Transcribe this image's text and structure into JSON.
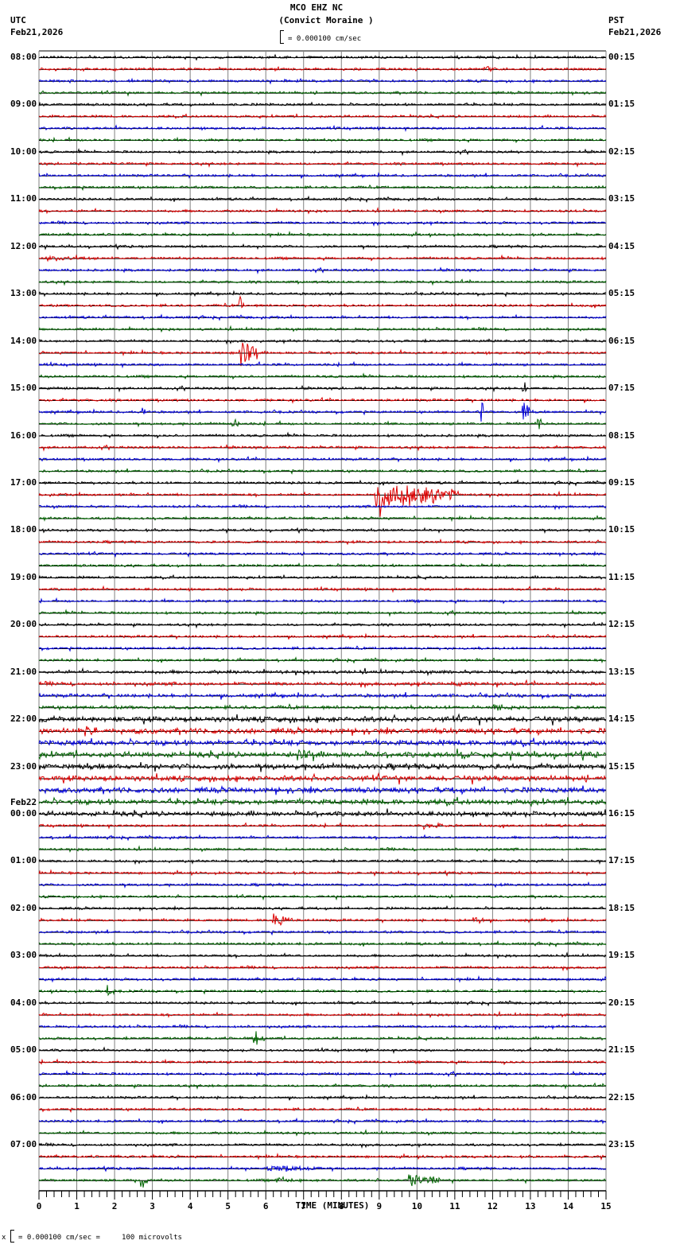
{
  "header": {
    "station": "MCO EHZ NC",
    "location": "(Convict Moraine )",
    "scale_text": "= 0.000100 cm/sec",
    "left_timezone": "UTC",
    "left_date": "Feb21,2026",
    "right_timezone": "PST",
    "right_date": "Feb21,2026"
  },
  "footer": {
    "xlabel": "TIME (MINUTES)",
    "scale_prefix": "x",
    "scale_text": "= 0.000100 cm/sec =     100 microvolts"
  },
  "chart_data": {
    "type": "line",
    "title": "MCO EHZ NC (Convict Moraine )",
    "subtitle": "= 0.000100 cm/sec",
    "xlabel": "TIME (MINUTES)",
    "ylabel_left": "UTC",
    "ylabel_right": "PST",
    "xlim": [
      0,
      15
    ],
    "x_ticks": [
      0,
      1,
      2,
      3,
      4,
      5,
      6,
      7,
      8,
      9,
      10,
      11,
      12,
      13,
      14,
      15
    ],
    "minor_tick_step": 0.2,
    "grid": "vertical lines every 1 minute",
    "rows_per_hour": 4,
    "minutes_per_row": 15,
    "trace_colors": [
      "#000000",
      "#dd0000",
      "#0000dd",
      "#006400"
    ],
    "left_labels": [
      {
        "row": 0,
        "text": "08:00"
      },
      {
        "row": 4,
        "text": "09:00"
      },
      {
        "row": 8,
        "text": "10:00"
      },
      {
        "row": 12,
        "text": "11:00"
      },
      {
        "row": 16,
        "text": "12:00"
      },
      {
        "row": 20,
        "text": "13:00"
      },
      {
        "row": 24,
        "text": "14:00"
      },
      {
        "row": 28,
        "text": "15:00"
      },
      {
        "row": 32,
        "text": "16:00"
      },
      {
        "row": 36,
        "text": "17:00"
      },
      {
        "row": 40,
        "text": "18:00"
      },
      {
        "row": 44,
        "text": "19:00"
      },
      {
        "row": 48,
        "text": "20:00"
      },
      {
        "row": 52,
        "text": "21:00"
      },
      {
        "row": 56,
        "text": "22:00"
      },
      {
        "row": 60,
        "text": "23:00"
      },
      {
        "row": 64,
        "text": "00:00",
        "date": "Feb22"
      },
      {
        "row": 68,
        "text": "01:00"
      },
      {
        "row": 72,
        "text": "02:00"
      },
      {
        "row": 76,
        "text": "03:00"
      },
      {
        "row": 80,
        "text": "04:00"
      },
      {
        "row": 84,
        "text": "05:00"
      },
      {
        "row": 88,
        "text": "06:00"
      },
      {
        "row": 92,
        "text": "07:00"
      }
    ],
    "right_labels": [
      {
        "row": 0,
        "text": "00:15"
      },
      {
        "row": 4,
        "text": "01:15"
      },
      {
        "row": 8,
        "text": "02:15"
      },
      {
        "row": 12,
        "text": "03:15"
      },
      {
        "row": 16,
        "text": "04:15"
      },
      {
        "row": 20,
        "text": "05:15"
      },
      {
        "row": 24,
        "text": "06:15"
      },
      {
        "row": 28,
        "text": "07:15"
      },
      {
        "row": 32,
        "text": "08:15"
      },
      {
        "row": 36,
        "text": "09:15"
      },
      {
        "row": 40,
        "text": "10:15"
      },
      {
        "row": 44,
        "text": "11:15"
      },
      {
        "row": 48,
        "text": "12:15"
      },
      {
        "row": 52,
        "text": "13:15"
      },
      {
        "row": 56,
        "text": "14:15"
      },
      {
        "row": 60,
        "text": "15:15"
      },
      {
        "row": 64,
        "text": "16:15"
      },
      {
        "row": 68,
        "text": "17:15"
      },
      {
        "row": 72,
        "text": "18:15"
      },
      {
        "row": 76,
        "text": "19:15"
      },
      {
        "row": 80,
        "text": "20:15"
      },
      {
        "row": 84,
        "text": "21:15"
      },
      {
        "row": 88,
        "text": "22:15"
      },
      {
        "row": 92,
        "text": "23:15"
      }
    ],
    "row_count": 96,
    "noise_level_by_row_range": [
      {
        "from": 0,
        "to": 51,
        "amp": 1.4
      },
      {
        "from": 52,
        "to": 55,
        "amp": 2.0
      },
      {
        "from": 56,
        "to": 63,
        "amp": 3.2
      },
      {
        "from": 64,
        "to": 64,
        "amp": 2.8
      },
      {
        "from": 65,
        "to": 95,
        "amp": 1.4
      }
    ],
    "events": [
      {
        "row": 1,
        "minute": 11.8,
        "amp": 5,
        "dur": 0.3,
        "note": "small red burst"
      },
      {
        "row": 17,
        "minute": 0.2,
        "amp": 3,
        "dur": 1.2
      },
      {
        "row": 21,
        "minute": 5.3,
        "amp": 14,
        "dur": 0.15,
        "note": "start of large spike"
      },
      {
        "row": 25,
        "minute": 5.3,
        "amp": 26,
        "dur": 0.5,
        "note": "local earthquake, red trace spanning multiple rows"
      },
      {
        "row": 28,
        "minute": 12.8,
        "amp": 18,
        "dur": 0.1
      },
      {
        "row": 30,
        "minute": 2.75,
        "amp": 8,
        "dur": 0.1
      },
      {
        "row": 30,
        "minute": 11.7,
        "amp": 22,
        "dur": 0.05
      },
      {
        "row": 30,
        "minute": 12.8,
        "amp": 16,
        "dur": 0.2
      },
      {
        "row": 31,
        "minute": 5.1,
        "amp": 9,
        "dur": 0.2
      },
      {
        "row": 31,
        "minute": 13.2,
        "amp": 12,
        "dur": 0.1
      },
      {
        "row": 37,
        "minute": 8.9,
        "amp": 30,
        "dur": 2.2,
        "note": "teleseismic/regional event, large red coda"
      },
      {
        "row": 53,
        "minute": 11.0,
        "amp": 4,
        "dur": 0.2
      },
      {
        "row": 55,
        "minute": 12.0,
        "amp": 6,
        "dur": 0.5
      },
      {
        "row": 57,
        "minute": 1.2,
        "amp": 5,
        "dur": 0.3
      },
      {
        "row": 59,
        "minute": 6.8,
        "amp": 7,
        "dur": 0.5
      },
      {
        "row": 59,
        "minute": 11.2,
        "amp": 6,
        "dur": 0.4
      },
      {
        "row": 65,
        "minute": 10.2,
        "amp": 5,
        "dur": 0.5
      },
      {
        "row": 73,
        "minute": 6.2,
        "amp": 12,
        "dur": 0.5
      },
      {
        "row": 73,
        "minute": 11.5,
        "amp": 7,
        "dur": 0.3
      },
      {
        "row": 79,
        "minute": 1.8,
        "amp": 8,
        "dur": 0.2
      },
      {
        "row": 83,
        "minute": 5.7,
        "amp": 14,
        "dur": 0.3
      },
      {
        "row": 95,
        "minute": 2.7,
        "amp": 13,
        "dur": 0.2
      },
      {
        "row": 95,
        "minute": 9.8,
        "amp": 12,
        "dur": 0.8
      },
      {
        "row": 95,
        "minute": 6.3,
        "amp": 5,
        "dur": 0.4
      },
      {
        "row": 94,
        "minute": 6.0,
        "amp": 4,
        "dur": 1.5
      }
    ]
  }
}
